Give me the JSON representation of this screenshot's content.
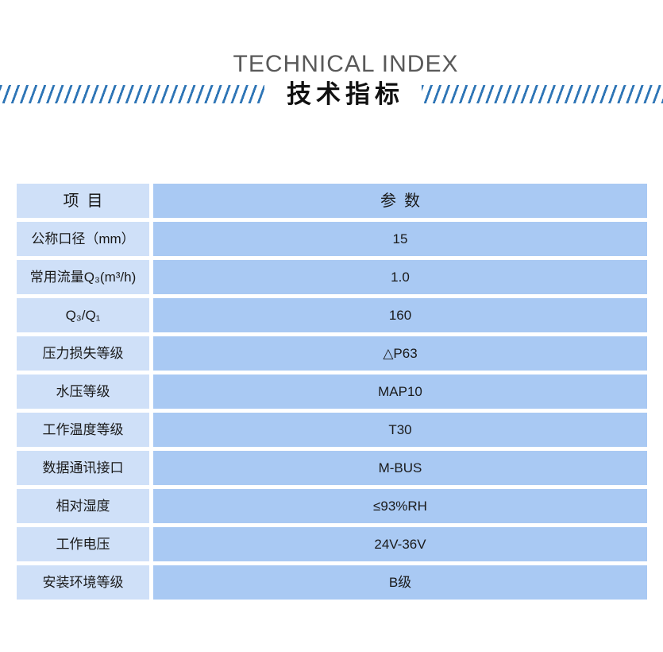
{
  "page": {
    "title_en": "TECHNICAL INDEX",
    "title_zh": "技术指标"
  },
  "table": {
    "headers": {
      "item": "项目",
      "param": "参数"
    },
    "rows": [
      {
        "item": "公称口径（mm）",
        "value": "15"
      },
      {
        "item": "常用流量Q₃(m³/h)",
        "value": "1.0"
      },
      {
        "item": "Q₃/Q₁",
        "value": "160"
      },
      {
        "item": "压力损失等级",
        "value": "△P63"
      },
      {
        "item": "水压等级",
        "value": "MAP10"
      },
      {
        "item": "工作温度等级",
        "value": "T30"
      },
      {
        "item": "数据通讯接口",
        "value": "M-BUS"
      },
      {
        "item": "相对湿度",
        "value": "≤93%RH"
      },
      {
        "item": "工作电压",
        "value": "24V-36V"
      },
      {
        "item": "安装环境等级",
        "value": "B级"
      }
    ]
  },
  "colors": {
    "accent_slash": "#2e75b6",
    "item_cell_bg": "#cfe0f8",
    "value_cell_bg": "#a9c9f3",
    "title_en_color": "#595959",
    "text_color": "#1a1a1a"
  }
}
